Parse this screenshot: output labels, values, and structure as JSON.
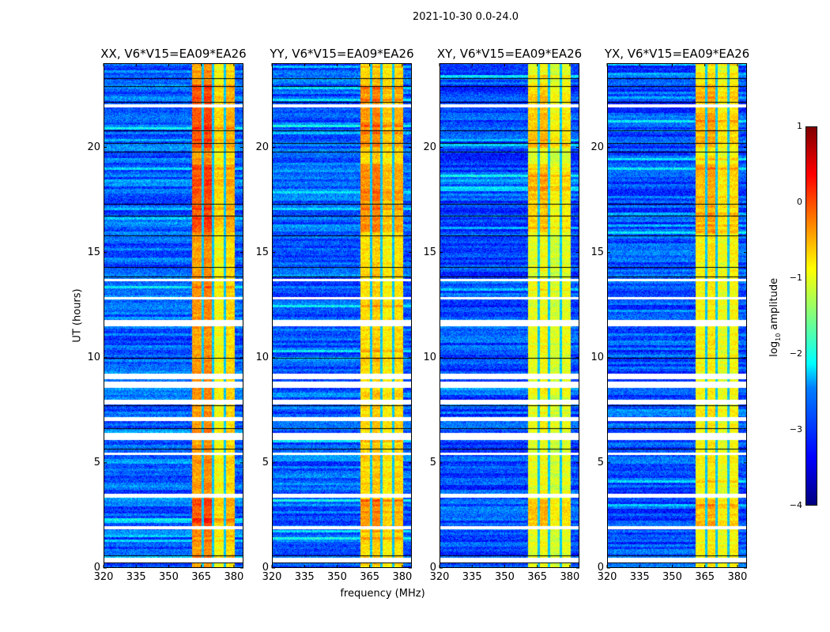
{
  "chart_data": {
    "type": "heatmap",
    "title": "2021-10-30 0.0-24.0",
    "xlabel": "frequency (MHz)",
    "ylabel": "UT (hours)",
    "xlim": [
      320,
      384.4
    ],
    "ylim": [
      0,
      24
    ],
    "xticks": [
      320,
      335,
      350,
      365,
      380
    ],
    "yticks": [
      0,
      5,
      10,
      15,
      20
    ],
    "panels": [
      {
        "title": "XX, V6*V15=EA09*EA26",
        "background_log_amp": -2.9,
        "band_log_amp": [
          -0.4,
          -0.3,
          -0.9,
          -0.7
        ]
      },
      {
        "title": "YY, V6*V15=EA09*EA26",
        "background_log_amp": -2.9,
        "band_log_amp": [
          -0.7,
          -0.6,
          -0.8,
          -0.7
        ]
      },
      {
        "title": "XY, V6*V15=EA09*EA26",
        "background_log_amp": -3.0,
        "band_log_amp": [
          -1.0,
          -0.9,
          -1.1,
          -1.0
        ]
      },
      {
        "title": "YX, V6*V15=EA09*EA26",
        "background_log_amp": -3.0,
        "band_log_amp": [
          -0.9,
          -0.8,
          -1.0,
          -0.9
        ]
      }
    ],
    "band_edges_mhz": [
      360.7,
      365.5,
      370.2,
      375.6,
      380.3
    ],
    "bright_hours": [
      [
        1.9,
        3.3
      ],
      [
        16.0,
        19.2
      ],
      [
        20.0,
        23.0
      ]
    ],
    "flagged_hours": [
      [
        0.3,
        0.5
      ],
      [
        1.85,
        2.0
      ],
      [
        3.35,
        3.55
      ],
      [
        5.4,
        5.5
      ],
      [
        6.1,
        6.45
      ],
      [
        7.0,
        7.2
      ],
      [
        7.8,
        8.0
      ],
      [
        8.6,
        8.9
      ],
      [
        9.0,
        9.25
      ],
      [
        11.5,
        11.8
      ],
      [
        12.8,
        12.92
      ],
      [
        13.65,
        13.75
      ],
      [
        21.9,
        22.05
      ]
    ],
    "gap_lines_hours": [
      0.25,
      0.6,
      5.67,
      6.65,
      7.75,
      10.0,
      13.85,
      14.3,
      15.8,
      16.75,
      17.3,
      19.8,
      20.2,
      20.8,
      22.15,
      22.9,
      23.3
    ],
    "colorbar": {
      "label": "log10 amplitude",
      "range": [
        -4,
        1
      ],
      "ticks": [
        "1",
        "0",
        "−1",
        "−2",
        "−3",
        "−4"
      ],
      "colormap": "jet"
    }
  }
}
